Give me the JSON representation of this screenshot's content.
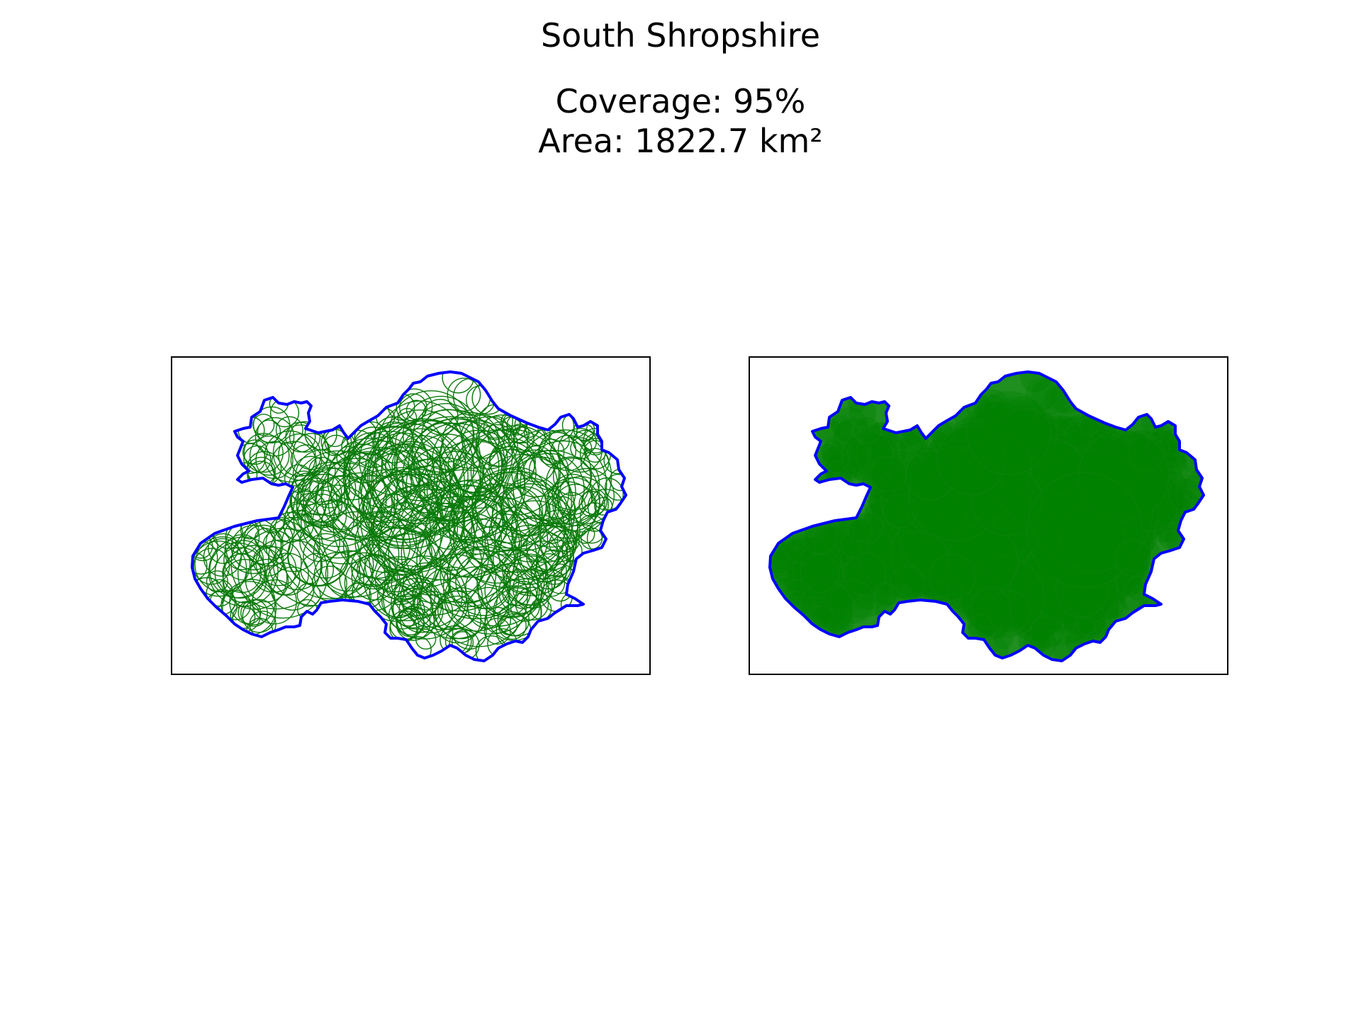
{
  "figure": {
    "title": "South Shropshire",
    "coverage_label": "Coverage: 95%",
    "area_label": "Area: 1822.7 km²"
  },
  "chart_data": {
    "type": "map",
    "region": "South Shropshire",
    "coverage_percent": 95,
    "area_km2": 1822.7,
    "panels": [
      {
        "name": "outline",
        "circle_style": "outline",
        "circle_color": "#008000",
        "boundary_color": "#0000ff"
      },
      {
        "name": "filled",
        "circle_style": "filled",
        "circle_color": "#008000",
        "boundary_color": "#0000ff"
      }
    ]
  }
}
